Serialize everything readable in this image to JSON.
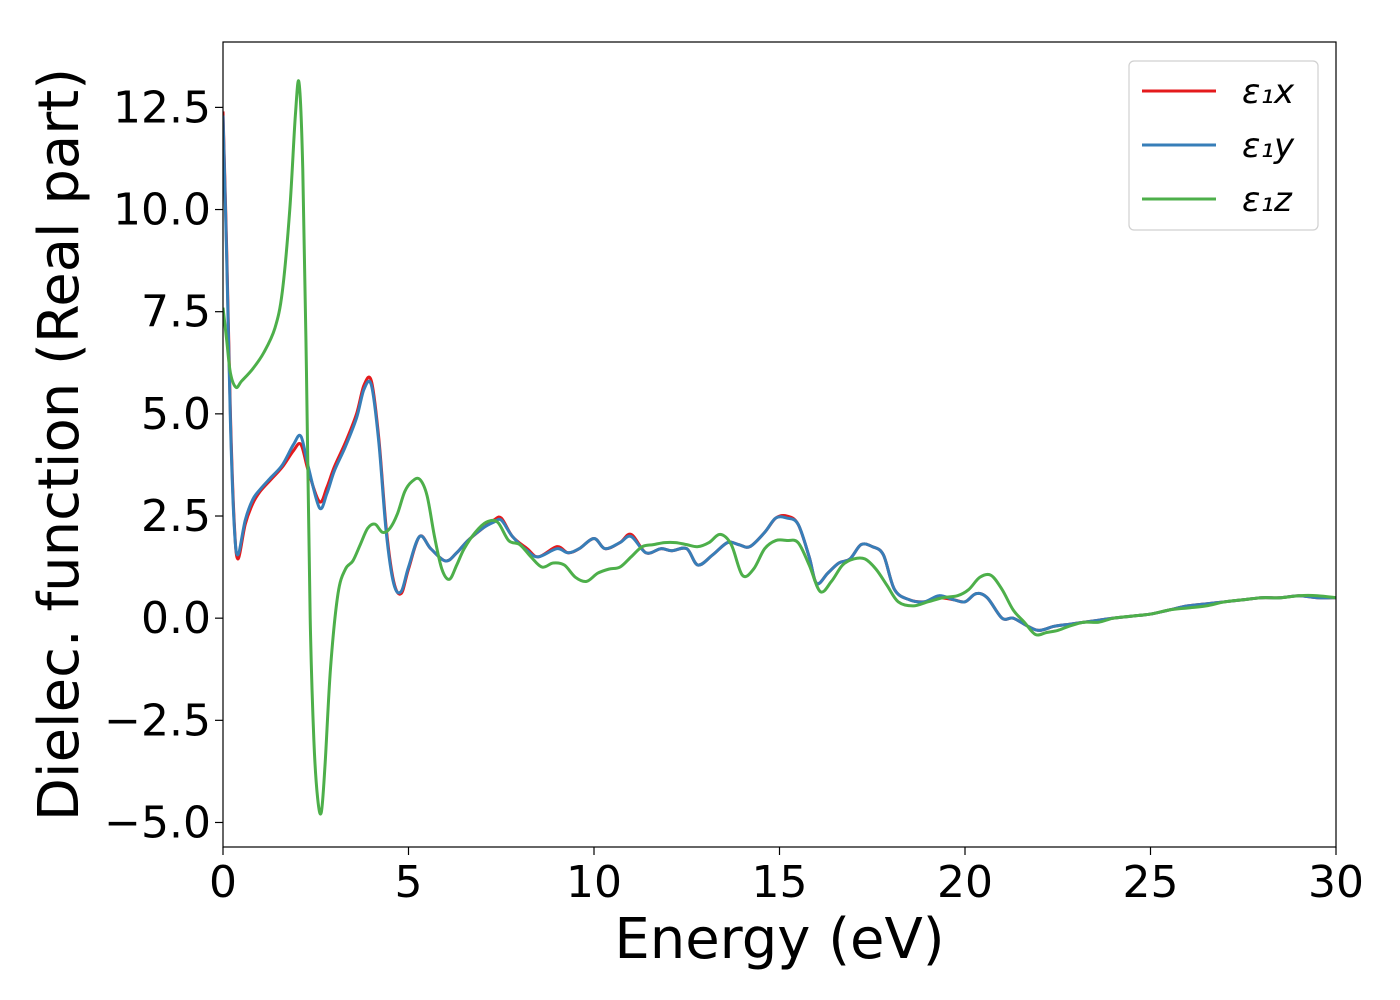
{
  "chart_data": {
    "type": "line",
    "xlabel": "Energy (eV)",
    "ylabel": "Dielec. function (Real part)",
    "xlim": [
      0,
      30
    ],
    "ylim": [
      -5.6,
      14.1
    ],
    "xticks": [
      0,
      5,
      10,
      15,
      20,
      25,
      30
    ],
    "xtick_labels": [
      "0",
      "5",
      "10",
      "15",
      "20",
      "25",
      "30"
    ],
    "yticks": [
      -5.0,
      -2.5,
      0.0,
      2.5,
      5.0,
      7.5,
      10.0,
      12.5
    ],
    "ytick_labels": [
      "−5.0",
      "−2.5",
      "0.0",
      "2.5",
      "5.0",
      "7.5",
      "10.0",
      "12.5"
    ],
    "grid": false,
    "legend_position": "top-right",
    "series": [
      {
        "name": "ε₁x",
        "color": "#e41a1c",
        "x": [
          0,
          0.1,
          0.2,
          0.3,
          0.4,
          0.6,
          0.8,
          1.0,
          1.3,
          1.6,
          1.9,
          2.1,
          2.3,
          2.6,
          2.8,
          3.0,
          3.3,
          3.6,
          3.8,
          4.0,
          4.2,
          4.4,
          4.6,
          4.8,
          5.0,
          5.3,
          5.6,
          6.0,
          6.3,
          6.6,
          7.0,
          7.3,
          7.5,
          7.8,
          8.2,
          8.5,
          9.0,
          9.3,
          9.6,
          10.0,
          10.3,
          10.7,
          11.0,
          11.4,
          11.8,
          12.1,
          12.5,
          12.8,
          13.2,
          13.6,
          13.9,
          14.2,
          14.6,
          14.9,
          15.2,
          15.5,
          15.8,
          16.0,
          16.3,
          16.6,
          16.9,
          17.2,
          17.5,
          17.8,
          18.1,
          18.5,
          18.9,
          19.3,
          19.7,
          20.0,
          20.3,
          20.6,
          21.0,
          21.3,
          21.7,
          22.0,
          22.4,
          22.8,
          23.2,
          23.6,
          24.0,
          24.5,
          25.0,
          25.5,
          26.0,
          26.5,
          27.0,
          27.5,
          28.0,
          28.5,
          29.0,
          29.5,
          30.0
        ],
        "values": [
          12.4,
          9.0,
          5.0,
          2.4,
          1.45,
          2.3,
          2.8,
          3.1,
          3.4,
          3.7,
          4.1,
          4.25,
          3.6,
          2.85,
          3.2,
          3.7,
          4.3,
          5.0,
          5.7,
          5.8,
          4.4,
          2.2,
          0.9,
          0.6,
          1.2,
          2.0,
          1.7,
          1.4,
          1.6,
          1.9,
          2.2,
          2.4,
          2.45,
          2.0,
          1.7,
          1.5,
          1.75,
          1.6,
          1.7,
          1.95,
          1.7,
          1.85,
          2.05,
          1.6,
          1.7,
          1.65,
          1.7,
          1.3,
          1.55,
          1.85,
          1.8,
          1.75,
          2.1,
          2.45,
          2.5,
          2.3,
          1.5,
          0.85,
          1.1,
          1.35,
          1.45,
          1.8,
          1.75,
          1.55,
          0.7,
          0.45,
          0.4,
          0.5,
          0.45,
          0.4,
          0.6,
          0.5,
          0.0,
          0.0,
          -0.2,
          -0.3,
          -0.2,
          -0.15,
          -0.1,
          -0.05,
          0.0,
          0.05,
          0.1,
          0.2,
          0.3,
          0.35,
          0.4,
          0.45,
          0.5,
          0.5,
          0.55,
          0.5,
          0.5
        ]
      },
      {
        "name": "ε₁y",
        "color": "#377eb8",
        "x": [
          0,
          0.1,
          0.2,
          0.3,
          0.4,
          0.6,
          0.8,
          1.0,
          1.3,
          1.6,
          1.9,
          2.1,
          2.3,
          2.6,
          2.8,
          3.0,
          3.3,
          3.6,
          3.8,
          4.0,
          4.2,
          4.4,
          4.6,
          4.8,
          5.0,
          5.3,
          5.6,
          6.0,
          6.3,
          6.6,
          7.0,
          7.3,
          7.5,
          7.8,
          8.2,
          8.5,
          9.0,
          9.3,
          9.6,
          10.0,
          10.3,
          10.7,
          11.0,
          11.4,
          11.8,
          12.1,
          12.5,
          12.8,
          13.2,
          13.6,
          13.9,
          14.2,
          14.6,
          14.9,
          15.2,
          15.5,
          15.8,
          16.0,
          16.3,
          16.6,
          16.9,
          17.2,
          17.5,
          17.8,
          18.1,
          18.5,
          18.9,
          19.3,
          19.7,
          20.0,
          20.3,
          20.6,
          21.0,
          21.3,
          21.7,
          22.0,
          22.4,
          22.8,
          23.2,
          23.6,
          24.0,
          24.5,
          25.0,
          25.5,
          26.0,
          26.5,
          27.0,
          27.5,
          28.0,
          28.5,
          29.0,
          29.5,
          30.0
        ],
        "values": [
          12.3,
          8.8,
          4.8,
          2.3,
          1.55,
          2.4,
          2.9,
          3.15,
          3.45,
          3.75,
          4.25,
          4.45,
          3.7,
          2.7,
          3.05,
          3.6,
          4.2,
          4.9,
          5.6,
          5.7,
          4.3,
          2.1,
          0.85,
          0.65,
          1.25,
          2.0,
          1.7,
          1.4,
          1.6,
          1.9,
          2.2,
          2.35,
          2.4,
          2.0,
          1.65,
          1.5,
          1.7,
          1.6,
          1.7,
          1.95,
          1.7,
          1.85,
          2.0,
          1.6,
          1.7,
          1.65,
          1.7,
          1.3,
          1.55,
          1.85,
          1.8,
          1.75,
          2.1,
          2.45,
          2.45,
          2.3,
          1.5,
          0.85,
          1.1,
          1.35,
          1.45,
          1.8,
          1.75,
          1.55,
          0.7,
          0.45,
          0.4,
          0.55,
          0.45,
          0.4,
          0.6,
          0.5,
          0.0,
          0.0,
          -0.2,
          -0.3,
          -0.2,
          -0.15,
          -0.1,
          -0.05,
          0.0,
          0.05,
          0.1,
          0.2,
          0.3,
          0.35,
          0.4,
          0.45,
          0.5,
          0.5,
          0.55,
          0.5,
          0.5
        ]
      },
      {
        "name": "ε₁z",
        "color": "#4daf4a",
        "x": [
          0,
          0.1,
          0.2,
          0.35,
          0.5,
          0.8,
          1.1,
          1.4,
          1.6,
          1.8,
          1.95,
          2.05,
          2.15,
          2.25,
          2.35,
          2.45,
          2.55,
          2.65,
          2.75,
          2.9,
          3.1,
          3.3,
          3.5,
          3.7,
          3.9,
          4.1,
          4.3,
          4.5,
          4.7,
          4.9,
          5.1,
          5.3,
          5.5,
          5.7,
          5.9,
          6.1,
          6.3,
          6.5,
          6.8,
          7.1,
          7.4,
          7.7,
          8.0,
          8.3,
          8.6,
          8.9,
          9.2,
          9.5,
          9.8,
          10.1,
          10.4,
          10.7,
          11.0,
          11.3,
          11.6,
          11.9,
          12.2,
          12.5,
          12.8,
          13.1,
          13.4,
          13.7,
          14.0,
          14.3,
          14.6,
          14.9,
          15.2,
          15.5,
          15.8,
          16.1,
          16.4,
          16.7,
          17.0,
          17.3,
          17.6,
          17.9,
          18.2,
          18.6,
          19.0,
          19.4,
          19.8,
          20.1,
          20.4,
          20.7,
          21.0,
          21.3,
          21.6,
          21.9,
          22.2,
          22.5,
          22.8,
          23.2,
          23.6,
          24.0,
          24.5,
          25.0,
          25.5,
          26.0,
          26.5,
          27.0,
          27.5,
          28.0,
          28.5,
          29.0,
          29.5,
          30.0
        ],
        "values": [
          7.6,
          6.8,
          6.0,
          5.65,
          5.8,
          6.1,
          6.5,
          7.1,
          8.0,
          10.0,
          12.3,
          13.1,
          11.0,
          6.0,
          0.0,
          -3.0,
          -4.4,
          -4.75,
          -3.6,
          -1.2,
          0.6,
          1.2,
          1.4,
          1.8,
          2.2,
          2.3,
          2.1,
          2.2,
          2.55,
          3.1,
          3.35,
          3.4,
          3.0,
          2.0,
          1.2,
          0.95,
          1.3,
          1.7,
          2.1,
          2.35,
          2.35,
          1.9,
          1.8,
          1.5,
          1.25,
          1.35,
          1.3,
          1.0,
          0.9,
          1.1,
          1.2,
          1.25,
          1.5,
          1.75,
          1.8,
          1.85,
          1.85,
          1.8,
          1.75,
          1.85,
          2.05,
          1.8,
          1.05,
          1.2,
          1.7,
          1.9,
          1.9,
          1.85,
          1.3,
          0.65,
          0.9,
          1.3,
          1.45,
          1.45,
          1.2,
          0.8,
          0.4,
          0.3,
          0.4,
          0.5,
          0.55,
          0.7,
          1.0,
          1.05,
          0.7,
          0.2,
          -0.1,
          -0.4,
          -0.35,
          -0.3,
          -0.2,
          -0.1,
          -0.1,
          0.0,
          0.05,
          0.1,
          0.2,
          0.25,
          0.3,
          0.4,
          0.45,
          0.5,
          0.5,
          0.55,
          0.55,
          0.5
        ]
      }
    ]
  }
}
